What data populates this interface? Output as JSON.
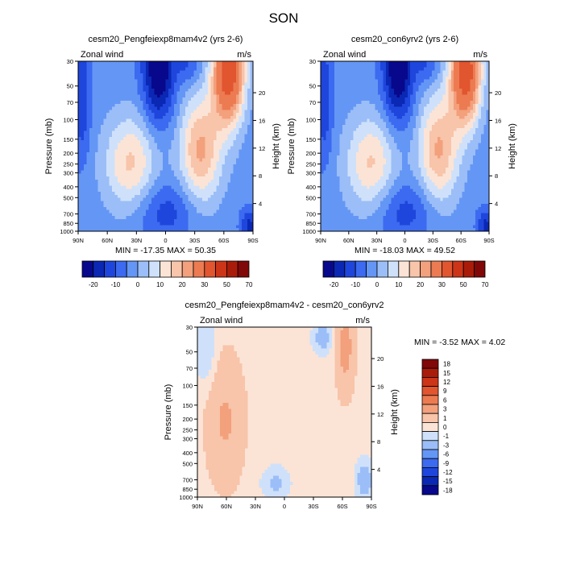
{
  "figure": {
    "title": "SON"
  },
  "chart_data": [
    {
      "type": "heatmap",
      "title": "cesm20_Pengfeiexp8mam4v2 (yrs 2-6)",
      "left_label": "Zonal wind",
      "right_label": "m/s",
      "xlabel": "",
      "ylabel": "Pressure (mb)",
      "ylabel_right": "Height (km)",
      "x_ticks": [
        "90N",
        "60N",
        "30N",
        "0",
        "30S",
        "60S",
        "90S"
      ],
      "x_values": [
        90,
        60,
        30,
        0,
        -30,
        -60,
        -90
      ],
      "y_ticks": [
        30,
        50,
        70,
        100,
        150,
        200,
        250,
        300,
        400,
        500,
        700,
        850,
        1000
      ],
      "height_ticks": [
        20,
        16,
        12,
        8,
        4
      ],
      "ylim": [
        1000,
        30
      ],
      "y_scale": "log",
      "min_max": "MIN = -17.35  MAX =  50.35",
      "levels": [
        -20,
        -15,
        -10,
        -5,
        0,
        5,
        10,
        15,
        20,
        25,
        30,
        40,
        50,
        60,
        70
      ],
      "colorbar_labels": [
        "-20",
        "-10",
        "0",
        "10",
        "20",
        "30",
        "50",
        "70"
      ],
      "colors": [
        "#08088c",
        "#0a28b4",
        "#1e46dc",
        "#3c6af0",
        "#6496f5",
        "#9bbef8",
        "#cfe1fa",
        "#fbe4d6",
        "#f8c4aa",
        "#f3a07c",
        "#ec7b52",
        "#e1552f",
        "#cc3517",
        "#aa1c0a",
        "#800808"
      ],
      "grid": false,
      "legend": "bottom"
    },
    {
      "type": "heatmap",
      "title": "cesm20_con6yrv2 (yrs 2-6)",
      "left_label": "Zonal wind",
      "right_label": "m/s",
      "xlabel": "",
      "ylabel": "Pressure (mb)",
      "ylabel_right": "Height (km)",
      "x_ticks": [
        "90N",
        "60N",
        "30N",
        "0",
        "30S",
        "60S",
        "90S"
      ],
      "x_values": [
        90,
        60,
        30,
        0,
        -30,
        -60,
        -90
      ],
      "y_ticks": [
        30,
        50,
        70,
        100,
        150,
        200,
        250,
        300,
        400,
        500,
        700,
        850,
        1000
      ],
      "height_ticks": [
        20,
        16,
        12,
        8,
        4
      ],
      "ylim": [
        1000,
        30
      ],
      "y_scale": "log",
      "min_max": "MIN = -18.03  MAX =  49.52",
      "levels": [
        -20,
        -15,
        -10,
        -5,
        0,
        5,
        10,
        15,
        20,
        25,
        30,
        40,
        50,
        60,
        70
      ],
      "colorbar_labels": [
        "-20",
        "-10",
        "0",
        "10",
        "20",
        "30",
        "50",
        "70"
      ],
      "colors": [
        "#08088c",
        "#0a28b4",
        "#1e46dc",
        "#3c6af0",
        "#6496f5",
        "#9bbef8",
        "#cfe1fa",
        "#fbe4d6",
        "#f8c4aa",
        "#f3a07c",
        "#ec7b52",
        "#e1552f",
        "#cc3517",
        "#aa1c0a",
        "#800808"
      ],
      "grid": false,
      "legend": "bottom"
    },
    {
      "type": "heatmap",
      "title": "cesm20_Pengfeiexp8mam4v2 - cesm20_con6yrv2",
      "left_label": "Zonal wind",
      "right_label": "m/s",
      "xlabel": "",
      "ylabel": "Pressure (mb)",
      "ylabel_right": "Height (km)",
      "x_ticks": [
        "90N",
        "60N",
        "30N",
        "0",
        "30S",
        "60S",
        "90S"
      ],
      "x_values": [
        90,
        60,
        30,
        0,
        -30,
        -60,
        -90
      ],
      "y_ticks": [
        30,
        50,
        70,
        100,
        150,
        200,
        250,
        300,
        400,
        500,
        700,
        850,
        1000
      ],
      "height_ticks": [
        20,
        16,
        12,
        8,
        4
      ],
      "ylim": [
        1000,
        30
      ],
      "y_scale": "log",
      "min_max": "MIN = -3.52  MAX =  4.02",
      "levels": [
        -18,
        -15,
        -12,
        -9,
        -6,
        -3,
        -1,
        0,
        1,
        3,
        6,
        9,
        12,
        15,
        18
      ],
      "colorbar_labels": [
        "18",
        "15",
        "12",
        "9",
        "6",
        "3",
        "1",
        "0",
        "-1",
        "-3",
        "-6",
        "-9",
        "-12",
        "-15",
        "-18"
      ],
      "colors": [
        "#08088c",
        "#0a28b4",
        "#1e46dc",
        "#3c6af0",
        "#6496f5",
        "#9bbef8",
        "#cfe1fa",
        "#fbe4d6",
        "#f8c4aa",
        "#f3a07c",
        "#ec7b52",
        "#e1552f",
        "#cc3517",
        "#aa1c0a",
        "#800808"
      ],
      "grid": false,
      "legend": "right"
    }
  ]
}
